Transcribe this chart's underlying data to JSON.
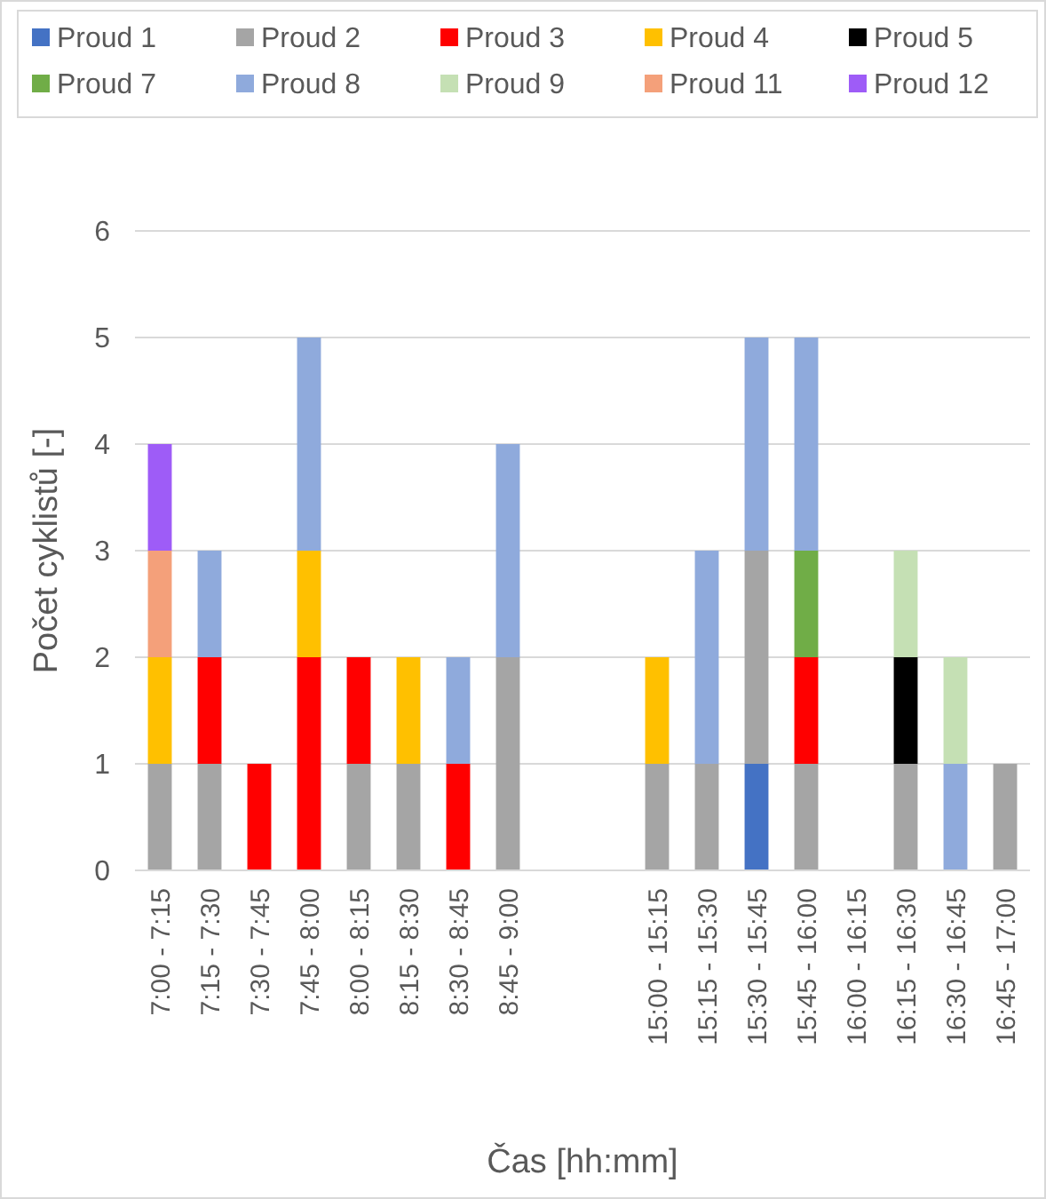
{
  "chart_data": {
    "type": "bar",
    "stacked": true,
    "xlabel": "Čas [hh:mm]",
    "ylabel": "Počet cyklistů [-]",
    "categories": [
      "7:00 - 7:15",
      "7:15 - 7:30",
      "7:30 - 7:45",
      "7:45 - 8:00",
      "8:00 - 8:15",
      "8:15 - 8:30",
      "8:30 - 8:45",
      "8:45 - 9:00",
      null,
      null,
      "15:00 - 15:15",
      "15:15 - 15:30",
      "15:30 - 15:45",
      "15:45 - 16:00",
      "16:00 - 16:15",
      "16:15 - 16:30",
      "16:30 - 16:45",
      "16:45 - 17:00"
    ],
    "ylim": [
      0,
      6
    ],
    "yticks": [
      0,
      1,
      2,
      3,
      4,
      5,
      6
    ],
    "grid": "y",
    "legend": "top",
    "series": [
      {
        "name": "Proud 1",
        "color": "#4472c4",
        "values": [
          null,
          null,
          null,
          null,
          null,
          null,
          null,
          null,
          null,
          null,
          null,
          null,
          1,
          null,
          null,
          null,
          null,
          null
        ]
      },
      {
        "name": "Proud 2",
        "color": "#a5a5a5",
        "values": [
          1,
          1,
          null,
          null,
          1,
          1,
          null,
          2,
          null,
          null,
          1,
          1,
          2,
          1,
          null,
          1,
          null,
          1
        ]
      },
      {
        "name": "Proud 3",
        "color": "#ff0000",
        "values": [
          null,
          1,
          1,
          2,
          1,
          null,
          1,
          null,
          null,
          null,
          null,
          null,
          null,
          1,
          null,
          null,
          null,
          null
        ]
      },
      {
        "name": "Proud 4",
        "color": "#ffc000",
        "values": [
          1,
          null,
          null,
          1,
          null,
          1,
          null,
          null,
          null,
          null,
          1,
          null,
          null,
          null,
          null,
          null,
          null,
          null
        ]
      },
      {
        "name": "Proud 5",
        "color": "#000000",
        "values": [
          null,
          null,
          null,
          null,
          null,
          null,
          null,
          null,
          null,
          null,
          null,
          null,
          null,
          null,
          null,
          1,
          null,
          null
        ]
      },
      {
        "name": "Proud 7",
        "color": "#70ad47",
        "values": [
          null,
          null,
          null,
          null,
          null,
          null,
          null,
          null,
          null,
          null,
          null,
          null,
          null,
          1,
          null,
          null,
          null,
          null
        ]
      },
      {
        "name": "Proud 8",
        "color": "#8faadc",
        "values": [
          null,
          1,
          null,
          2,
          null,
          null,
          1,
          2,
          null,
          null,
          null,
          2,
          2,
          2,
          null,
          null,
          1,
          null
        ]
      },
      {
        "name": "Proud 9",
        "color": "#c5e0b4",
        "values": [
          null,
          null,
          null,
          null,
          null,
          null,
          null,
          null,
          null,
          null,
          null,
          null,
          null,
          null,
          null,
          1,
          1,
          null
        ]
      },
      {
        "name": "Proud 11",
        "color": "#f4a07a",
        "values": [
          1,
          null,
          null,
          null,
          null,
          null,
          null,
          null,
          null,
          null,
          null,
          null,
          null,
          null,
          null,
          null,
          null,
          null
        ]
      },
      {
        "name": "Proud 12",
        "color": "#9e5cf7",
        "values": [
          1,
          null,
          null,
          null,
          null,
          null,
          null,
          null,
          null,
          null,
          null,
          null,
          null,
          null,
          null,
          null,
          null,
          null
        ]
      }
    ]
  }
}
